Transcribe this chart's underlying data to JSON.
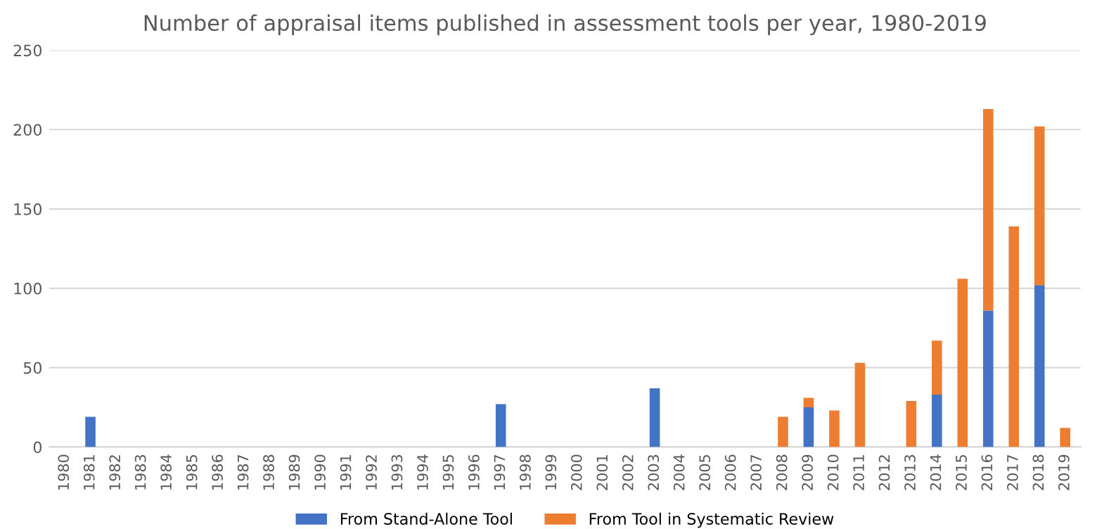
{
  "chart_data": {
    "type": "bar",
    "title": "Number of appraisal items published in assessment tools per year, 1980-2019",
    "categories": [
      "1980",
      "1981",
      "1982",
      "1983",
      "1984",
      "1985",
      "1986",
      "1987",
      "1988",
      "1989",
      "1990",
      "1991",
      "1992",
      "1993",
      "1994",
      "1995",
      "1996",
      "1997",
      "1998",
      "1999",
      "2000",
      "2001",
      "2002",
      "2003",
      "2004",
      "2005",
      "2006",
      "2007",
      "2008",
      "2009",
      "2010",
      "2011",
      "2012",
      "2013",
      "2014",
      "2015",
      "2016",
      "2017",
      "2018",
      "2019"
    ],
    "stacked": true,
    "series": [
      {
        "name": "From Stand-Alone Tool",
        "color": "#4472c4",
        "values": [
          null,
          19,
          null,
          null,
          null,
          null,
          null,
          null,
          null,
          null,
          null,
          null,
          null,
          null,
          null,
          null,
          null,
          27,
          null,
          null,
          null,
          null,
          null,
          37,
          null,
          null,
          null,
          null,
          null,
          25,
          null,
          null,
          null,
          null,
          33,
          null,
          86,
          null,
          102,
          null
        ]
      },
      {
        "name": "From Tool in Systematic Review",
        "color": "#ed7d31",
        "values": [
          null,
          null,
          null,
          null,
          null,
          null,
          null,
          null,
          null,
          null,
          null,
          null,
          null,
          null,
          null,
          null,
          null,
          null,
          null,
          null,
          null,
          null,
          null,
          null,
          null,
          null,
          null,
          null,
          19,
          6,
          23,
          53,
          null,
          29,
          34,
          106,
          127,
          139,
          100,
          12
        ]
      }
    ],
    "ylim": [
      0,
      250
    ],
    "yticks": [
      0,
      50,
      100,
      150,
      200,
      250
    ],
    "grid": "y",
    "legend": "bottom"
  }
}
